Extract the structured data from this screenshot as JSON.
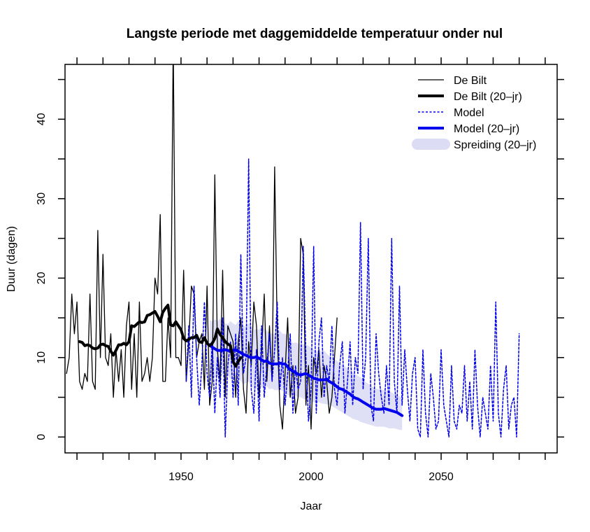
{
  "chart_data": {
    "type": "line",
    "title": "Langste periode met daggemiddelde temperatuur onder nul",
    "xlabel": "Jaar",
    "ylabel": "Duur (dagen)",
    "xlim": [
      1905.4,
      2094.6
    ],
    "ylim": [
      -2.0,
      46.9
    ],
    "x_ticks": [
      1910,
      1920,
      1930,
      1940,
      1950,
      1960,
      1970,
      1980,
      1990,
      2000,
      2010,
      2020,
      2030,
      2040,
      2050,
      2060,
      2070,
      2080,
      2090
    ],
    "x_tick_labels": [
      {
        "value": 1950,
        "label": "1950"
      },
      {
        "value": 2000,
        "label": "2000"
      },
      {
        "value": 2050,
        "label": "2050"
      }
    ],
    "y_ticks": [
      0,
      5,
      10,
      15,
      20,
      25,
      30,
      35,
      40,
      45
    ],
    "y_tick_labels": [
      {
        "value": 0,
        "label": "0"
      },
      {
        "value": 10,
        "label": "10"
      },
      {
        "value": 20,
        "label": "20"
      },
      {
        "value": 30,
        "label": "30"
      },
      {
        "value": 40,
        "label": "40"
      }
    ],
    "grid": false,
    "legend": {
      "placement": "top-right",
      "entries": [
        {
          "label": "De Bilt",
          "style": "thin-solid",
          "color": "#000000"
        },
        {
          "label": "De Bilt (20–jr)",
          "style": "thick-solid",
          "color": "#000000"
        },
        {
          "label": "Model",
          "style": "dashed",
          "color": "#0000ee"
        },
        {
          "label": "Model (20–jr)",
          "style": "thick-solid",
          "color": "#0000ee"
        },
        {
          "label": "Spreiding (20–jr)",
          "style": "band",
          "color": "#dcdcf5"
        }
      ]
    },
    "series": [
      {
        "name": "De Bilt",
        "color": "#000000",
        "x_start": 1906,
        "values": [
          8,
          10,
          18,
          13,
          17,
          7,
          6,
          8,
          7,
          18,
          7,
          6,
          26,
          10,
          23,
          10,
          9,
          13,
          5,
          11,
          7,
          11,
          5,
          14,
          17,
          6,
          13,
          5,
          17,
          7,
          8,
          10,
          7,
          10,
          20,
          18,
          28,
          7,
          7,
          15,
          10,
          50,
          10,
          10,
          9,
          21,
          7,
          12,
          19,
          18,
          10,
          12,
          13,
          6,
          19,
          4,
          7,
          33,
          11,
          7,
          21,
          5,
          14,
          13,
          12,
          5,
          12,
          15,
          6,
          3,
          12,
          9,
          17,
          14,
          5,
          11,
          18,
          7,
          14,
          7,
          34,
          13,
          4,
          1,
          8,
          15,
          5,
          9,
          3,
          5,
          25,
          23,
          4,
          9,
          1,
          10,
          8,
          11,
          5,
          9,
          7,
          3,
          5,
          10,
          15
        ]
      },
      {
        "name": "De Bilt (20-jr)",
        "color": "#000000",
        "x_start": 1911,
        "values": [
          12.0,
          11.9,
          11.5,
          11.6,
          11.5,
          11.2,
          11.1,
          11.2,
          11.6,
          11.7,
          11.5,
          11.4,
          10.8,
          10.3,
          10.9,
          11.6,
          11.6,
          11.8,
          11.6,
          12.0,
          14.0,
          13.9,
          14.2,
          14.5,
          14.4,
          14.5,
          15.3,
          15.4,
          15.6,
          15.8,
          15.2,
          14.5,
          15.7,
          16.2,
          16.6,
          14.1,
          14.0,
          14.5,
          14.0,
          13.5,
          12.4,
          12.1,
          12.3,
          12.5,
          12.5,
          12.8,
          12.0,
          11.9,
          12.5,
          11.8,
          11.5,
          11.8,
          12.4,
          13.6,
          12.9,
          12.5,
          12.0,
          11.7,
          11.5,
          9.5,
          8.9,
          9.5,
          10.0
        ]
      },
      {
        "name": "Model",
        "color": "#0000ee",
        "x_start": 1952,
        "values": [
          7,
          14,
          5,
          19,
          10,
          4,
          9,
          17,
          8,
          5,
          12,
          3,
          10,
          5,
          15,
          0,
          9,
          12,
          5,
          13,
          4,
          23,
          8,
          10,
          35,
          6,
          3,
          11,
          2,
          14,
          5,
          9,
          13,
          7,
          11,
          17,
          6,
          10,
          4,
          8,
          13,
          3,
          9,
          6,
          7,
          24,
          10,
          2,
          6,
          24,
          3,
          12,
          15,
          5,
          9,
          7,
          14,
          6,
          4,
          9,
          12,
          3,
          7,
          12,
          4,
          10,
          8,
          27,
          6,
          10,
          25,
          4,
          2,
          13,
          8,
          5,
          3,
          9,
          4,
          25,
          7,
          3,
          19,
          4,
          11,
          6,
          2,
          8,
          10,
          1,
          0,
          11,
          3,
          0,
          8,
          5,
          1,
          2,
          11,
          4,
          2,
          0,
          9,
          2,
          1,
          4,
          3,
          9,
          2,
          7,
          1,
          11,
          4,
          0,
          5,
          3,
          1,
          9,
          2,
          17,
          3,
          0,
          6,
          9,
          1,
          4,
          5,
          0,
          13
        ]
      },
      {
        "name": "Model (20-jr)",
        "color": "#0000ee",
        "x_start": 1961,
        "values": [
          11.6,
          11.3,
          11.1,
          10.9,
          10.9,
          10.9,
          11.0,
          10.9,
          10.8,
          10.9,
          11.0,
          10.8,
          10.6,
          10.4,
          10.3,
          10.1,
          10.0,
          10.0,
          10.1,
          9.9,
          9.7,
          9.5,
          9.6,
          9.3,
          9.2,
          9.2,
          9.2,
          9.3,
          9.2,
          9.2,
          8.8,
          8.5,
          8.3,
          8.1,
          7.9,
          7.8,
          7.9,
          8.0,
          7.8,
          7.6,
          7.4,
          7.3,
          7.2,
          7.2,
          7.2,
          7.3,
          7.0,
          6.8,
          6.6,
          6.3,
          6.1,
          6.0,
          5.8,
          5.6,
          5.4,
          5.1,
          4.9,
          4.8,
          4.6,
          4.4,
          4.2,
          4.0,
          3.8,
          3.6,
          3.5,
          3.5,
          3.5,
          3.6,
          3.5,
          3.4,
          3.3,
          3.2,
          3.1,
          2.9,
          2.7
        ]
      }
    ],
    "band": {
      "name": "Spreiding (20-jr)",
      "color": "#dcdcf5",
      "x_start": 1961,
      "lower": [
        7.5,
        7.4,
        7.5,
        7.6,
        7.8,
        7.9,
        7.6,
        7.8,
        7.3,
        7.1,
        7.5,
        7.6,
        7.0,
        6.6,
        6.8,
        7.0,
        6.4,
        6.0,
        6.1,
        6.1,
        6.3,
        6.1,
        6.4,
        6.0,
        6.1,
        5.9,
        5.9,
        6.0,
        5.8,
        5.5,
        5.3,
        5.1,
        5.0,
        5.2,
        5.0,
        5.0,
        4.8,
        4.7,
        4.4,
        4.3,
        4.4,
        4.2,
        4.4,
        4.2,
        4.2,
        4.1,
        4.1,
        3.9,
        3.7,
        3.5,
        3.3,
        3.1,
        2.9,
        2.7,
        2.5,
        2.3,
        2.2,
        2.1,
        1.9,
        1.8,
        1.7,
        1.6,
        1.5,
        1.4,
        1.3,
        1.3,
        1.3,
        1.3,
        1.2,
        1.1,
        1.1,
        1.1,
        1.0,
        0.9,
        0.9
      ],
      "upper": [
        14.7,
        14.6,
        14.8,
        14.6,
        14.9,
        14.5,
        14.3,
        14.2,
        14.6,
        14.3,
        14.1,
        14.6,
        14.3,
        13.9,
        14.0,
        14.3,
        14.0,
        13.5,
        13.6,
        13.5,
        13.9,
        13.6,
        13.4,
        13.1,
        13.0,
        12.9,
        13.3,
        13.4,
        13.0,
        13.0,
        12.7,
        12.3,
        11.8,
        11.9,
        11.8,
        11.6,
        11.7,
        11.6,
        11.5,
        11.2,
        11.0,
        10.8,
        10.9,
        10.8,
        10.9,
        10.5,
        10.2,
        10.0,
        9.8,
        9.6,
        9.3,
        9.1,
        8.9,
        8.6,
        8.4,
        8.1,
        7.9,
        7.7,
        7.5,
        7.2,
        6.9,
        6.7,
        6.5,
        6.2,
        6.1,
        6.0,
        6.0,
        5.9,
        5.8,
        5.7,
        5.6,
        5.4,
        5.3,
        5.1,
        4.9
      ]
    }
  }
}
